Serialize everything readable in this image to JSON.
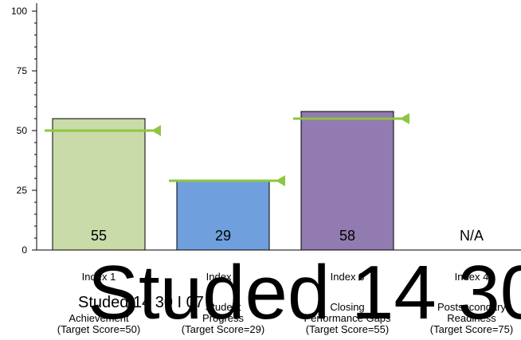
{
  "chart_data": {
    "type": "bar",
    "categories": [
      "Index 1",
      "Index 2",
      "Index 3",
      "Index 4"
    ],
    "category_lines": [
      [
        "Index 1",
        "Achievement",
        "(Target Score=50)"
      ],
      [
        "Index 2",
        "Student",
        "Progress",
        "(Target Score=29)"
      ],
      [
        "Index 3",
        "Closing",
        "Performance Gaps",
        "(Target Score=55)"
      ],
      [
        "Index 4",
        "Postsecondary",
        "Readiness",
        "(Target Score=75)"
      ]
    ],
    "values": [
      55,
      29,
      58,
      null
    ],
    "value_labels": [
      "55",
      "29",
      "58",
      "N/A"
    ],
    "targets": [
      50,
      29,
      55,
      null
    ],
    "colors": [
      "#c9dba8",
      "#6f9fdc",
      "#927bb0",
      "#ffffff"
    ],
    "target_color": "#8dc63f",
    "ylim": [
      0,
      100
    ],
    "yticks": [
      0,
      25,
      50,
      75,
      100
    ],
    "grid": false,
    "title": "",
    "xlabel": "",
    "ylabel": ""
  },
  "overlay_text": {
    "big": "Studed 14 30",
    "small": "Studed 14 30 I 07"
  }
}
